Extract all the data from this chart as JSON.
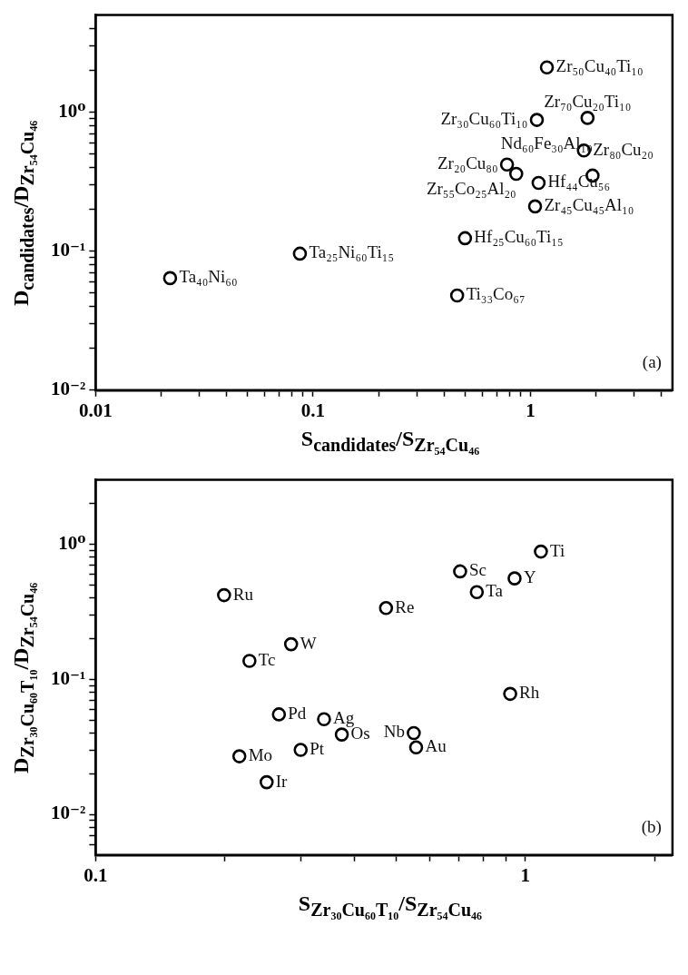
{
  "chart_data": [
    {
      "type": "scatter",
      "xlabel": "S$_{candidates}$/S$_{Zr₅₄Cu₄₆}$",
      "ylabel": "D$_{candidates}$/D$_{Zr₅₄Cu₄₆}$",
      "log": "xy",
      "grid": false,
      "legend": false,
      "marker": "circle",
      "xlim": [
        0.01,
        4.5
      ],
      "ylim": [
        0.01,
        5
      ],
      "xticks": [
        0.01,
        {
          "value": 0.02,
          "label": null
        },
        {
          "value": 0.03,
          "label": null
        },
        {
          "value": 0.04,
          "label": null
        },
        {
          "value": 0.05,
          "label": null
        },
        {
          "value": 0.06,
          "label": null
        },
        {
          "value": 0.07,
          "label": null
        },
        {
          "value": 0.08,
          "label": null
        },
        {
          "value": 0.09,
          "label": null
        },
        0.1,
        {
          "value": 0.2,
          "label": null
        },
        {
          "value": 0.3,
          "label": null
        },
        {
          "value": 0.4,
          "label": null
        },
        {
          "value": 0.5,
          "label": null
        },
        {
          "value": 0.6,
          "label": null
        },
        {
          "value": 0.7,
          "label": null
        },
        {
          "value": 0.8,
          "label": null
        },
        {
          "value": 0.9,
          "label": null
        },
        1,
        {
          "value": 2,
          "label": null
        },
        {
          "value": 3,
          "label": null
        },
        {
          "value": 4,
          "label": null
        }
      ],
      "yticks": [
        {
          "value": 0.01,
          "label": "10⁻²"
        },
        {
          "value": 0.02,
          "label": null
        },
        {
          "value": 0.03,
          "label": null
        },
        {
          "value": 0.04,
          "label": null
        },
        {
          "value": 0.05,
          "label": null
        },
        {
          "value": 0.06,
          "label": null
        },
        {
          "value": 0.07,
          "label": null
        },
        {
          "value": 0.08,
          "label": null
        },
        {
          "value": 0.09,
          "label": null
        },
        {
          "value": 0.1,
          "label": "10⁻¹"
        },
        {
          "value": 0.2,
          "label": null
        },
        {
          "value": 0.3,
          "label": null
        },
        {
          "value": 0.4,
          "label": null
        },
        {
          "value": 0.5,
          "label": null
        },
        {
          "value": 0.6,
          "label": null
        },
        {
          "value": 0.7,
          "label": null
        },
        {
          "value": 0.8,
          "label": null
        },
        {
          "value": 0.9,
          "label": null
        },
        {
          "value": 1,
          "label": "10⁰"
        },
        {
          "value": 2,
          "label": null
        },
        {
          "value": 3,
          "label": null
        },
        {
          "value": 4,
          "label": null
        }
      ],
      "series": [
        {
          "color": "#000000",
          "x": [
            0.022,
            0.087,
            0.46,
            0.5,
            1.05,
            1.09,
            0.78,
            0.86,
            1.07,
            1.19,
            1.83,
            1.76,
            1.93
          ],
          "values": [
            0.064,
            0.096,
            0.048,
            0.124,
            0.21,
            0.31,
            0.42,
            0.36,
            0.88,
            2.1,
            0.91,
            0.53,
            0.35
          ]
        }
      ],
      "annotations": [
        {
          "text": "Ta₄₀Ni₆₀",
          "x": 0.022,
          "y": 0.064
        },
        {
          "text": "Ta₂₅Ni₆₀Ti₁₅",
          "x": 0.087,
          "y": 0.096
        },
        {
          "text": "Ti₃₃Co₆₇",
          "x": 0.46,
          "y": 0.048
        },
        {
          "text": "Hf₂₅Cu₆₀Ti₁₅",
          "x": 0.5,
          "y": 0.124
        },
        {
          "text": "Zr₄₅Cu₄₅Al₁₀",
          "x": 1.05,
          "y": 0.21
        },
        {
          "text": "Hf₄₄Cu₅₆",
          "x": 1.09,
          "y": 0.31
        },
        {
          "text": "Zr₂₀Cu₈₀",
          "x": 0.78,
          "y": 0.42
        },
        {
          "text": "Zr₅₅Co₂₅Al₂₀",
          "x": 0.86,
          "y": 0.36
        },
        {
          "text": "Zr₃₀Cu₆₀Ti₁₀",
          "x": 1.07,
          "y": 0.88
        },
        {
          "text": "Zr₅₀Cu₄₀Ti₁₀",
          "x": 1.19,
          "y": 2.1
        },
        {
          "text": "Zr₇₀Cu₂₀Ti₁₀",
          "x": 1.83,
          "y": 0.91
        },
        {
          "text": "Zr₈₀Cu₂₀",
          "x": 1.76,
          "y": 0.53
        },
        {
          "text": "Nd₆₀Fe₃₀Al₁₀",
          "x": 1.93,
          "y": 0.35
        },
        "(a)"
      ]
    },
    {
      "type": "scatter",
      "xlabel": "S$_{Zr₃₀Cu₆₀T₁₀}$/S$_{Zr₅₄Cu₄₆}$",
      "ylabel": "D$_{Zr₃₀Cu₆₀T₁₀}$/D$_{Zr₅₄Cu₄₆}$",
      "log": "xy",
      "grid": false,
      "legend": false,
      "marker": "circle",
      "xlim": [
        0.1,
        2.2
      ],
      "ylim": [
        0.005,
        3
      ],
      "xticks": [
        0.1,
        {
          "value": 0.2,
          "label": null
        },
        {
          "value": 0.3,
          "label": null
        },
        {
          "value": 0.4,
          "label": null
        },
        {
          "value": 0.5,
          "label": null
        },
        {
          "value": 0.6,
          "label": null
        },
        {
          "value": 0.7,
          "label": null
        },
        {
          "value": 0.8,
          "label": null
        },
        {
          "value": 0.9,
          "label": null
        },
        1,
        {
          "value": 2,
          "label": null
        }
      ],
      "yticks": [
        {
          "value": 0.006,
          "label": null
        },
        {
          "value": 0.007,
          "label": null
        },
        {
          "value": 0.008,
          "label": null
        },
        {
          "value": 0.009,
          "label": null
        },
        {
          "value": 0.01,
          "label": "10⁻²"
        },
        {
          "value": 0.02,
          "label": null
        },
        {
          "value": 0.03,
          "label": null
        },
        {
          "value": 0.04,
          "label": null
        },
        {
          "value": 0.05,
          "label": null
        },
        {
          "value": 0.06,
          "label": null
        },
        {
          "value": 0.07,
          "label": null
        },
        {
          "value": 0.08,
          "label": null
        },
        {
          "value": 0.09,
          "label": null
        },
        {
          "value": 0.1,
          "label": "10⁻¹"
        },
        {
          "value": 0.2,
          "label": null
        },
        {
          "value": 0.3,
          "label": null
        },
        {
          "value": 0.4,
          "label": null
        },
        {
          "value": 0.5,
          "label": null
        },
        {
          "value": 0.6,
          "label": null
        },
        {
          "value": 0.7,
          "label": null
        },
        {
          "value": 0.8,
          "label": null
        },
        {
          "value": 0.9,
          "label": null
        },
        {
          "value": 1,
          "label": "10⁰"
        },
        {
          "value": 2,
          "label": null
        }
      ],
      "series": [
        {
          "color": "#000000",
          "x": [
            0.199,
            0.228,
            0.285,
            0.474,
            0.705,
            0.771,
            0.944,
            1.087,
            0.922,
            0.267,
            0.34,
            0.374,
            0.55,
            0.557,
            0.3,
            0.216,
            0.25
          ],
          "values": [
            0.42,
            0.137,
            0.182,
            0.337,
            0.63,
            0.442,
            0.559,
            0.883,
            0.078,
            0.055,
            0.0506,
            0.039,
            0.04,
            0.0313,
            0.03,
            0.0269,
            0.0173
          ]
        }
      ],
      "annotations": [
        {
          "text": "Ru",
          "x": 0.199,
          "y": 0.42
        },
        {
          "text": "Tc",
          "x": 0.228,
          "y": 0.137
        },
        {
          "text": "W",
          "x": 0.285,
          "y": 0.182
        },
        {
          "text": "Re",
          "x": 0.474,
          "y": 0.337
        },
        {
          "text": "Sc",
          "x": 0.705,
          "y": 0.63
        },
        {
          "text": "Ta",
          "x": 0.771,
          "y": 0.442
        },
        {
          "text": "Y",
          "x": 0.944,
          "y": 0.559
        },
        {
          "text": "Ti",
          "x": 1.087,
          "y": 0.883
        },
        {
          "text": "Rh",
          "x": 0.922,
          "y": 0.078
        },
        {
          "text": "Pd",
          "x": 0.267,
          "y": 0.055
        },
        {
          "text": "Ag",
          "x": 0.34,
          "y": 0.0506
        },
        {
          "text": "Os",
          "x": 0.374,
          "y": 0.039
        },
        {
          "text": "Nb",
          "x": 0.55,
          "y": 0.04
        },
        {
          "text": "Au",
          "x": 0.557,
          "y": 0.0313
        },
        {
          "text": "Pt",
          "x": 0.3,
          "y": 0.03
        },
        {
          "text": "Mo",
          "x": 0.216,
          "y": 0.0269
        },
        {
          "text": "Ir",
          "x": 0.25,
          "y": 0.0173
        },
        "(b)"
      ]
    }
  ]
}
